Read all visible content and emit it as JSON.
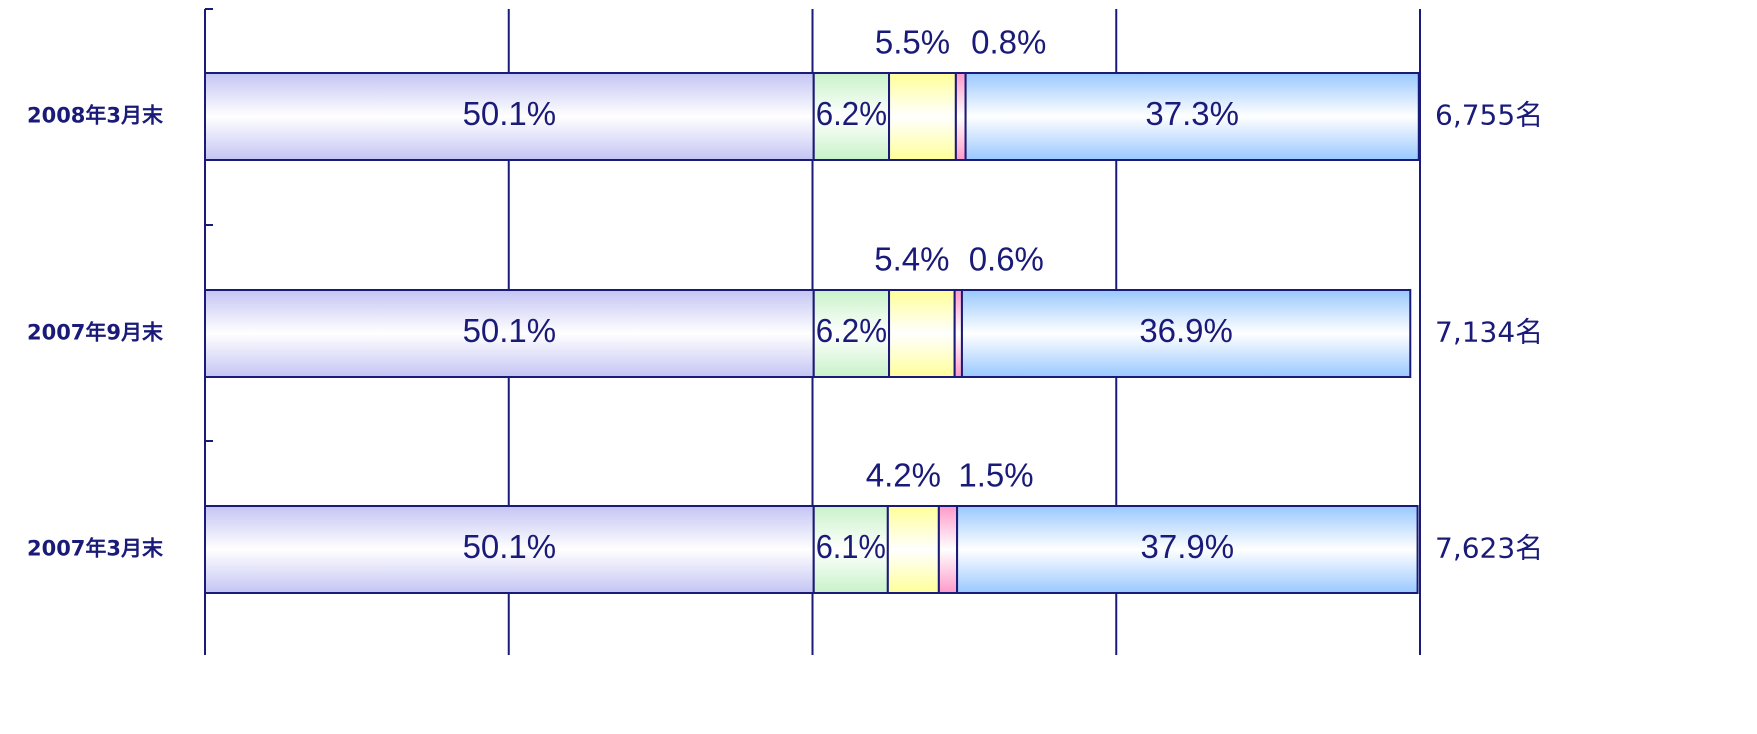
{
  "chart_data": {
    "type": "stacked-bar-horizontal",
    "categories": [
      "2008年3月末",
      "2007年9月末",
      "2007年3月末"
    ],
    "totals": [
      "6,755名",
      "7,134名",
      "7,623名"
    ],
    "series": [
      {
        "color": "#c4c4f4",
        "values": [
          50.1,
          50.1,
          50.1
        ],
        "value_labels": [
          "50.1%",
          "50.1%",
          "50.1%"
        ]
      },
      {
        "color": "#c8f2c8",
        "values": [
          6.2,
          6.2,
          6.1
        ],
        "value_labels": [
          "6.2%",
          "6.2%",
          "6.1%"
        ]
      },
      {
        "color": "#ffff99",
        "values": [
          5.5,
          5.4,
          4.2
        ],
        "value_labels": [
          "5.5%",
          "5.4%",
          "4.2%"
        ]
      },
      {
        "color": "#ff99c8",
        "values": [
          0.8,
          0.6,
          1.5
        ],
        "value_labels": [
          "0.8%",
          "0.6%",
          "1.5%"
        ]
      },
      {
        "color": "#99c8ff",
        "values": [
          37.3,
          36.9,
          37.9
        ],
        "value_labels": [
          "37.3%",
          "36.9%",
          "37.9%"
        ]
      }
    ],
    "xlim": [
      0,
      100
    ],
    "xticks": [
      0,
      25,
      50,
      75,
      100
    ],
    "grid": true
  }
}
